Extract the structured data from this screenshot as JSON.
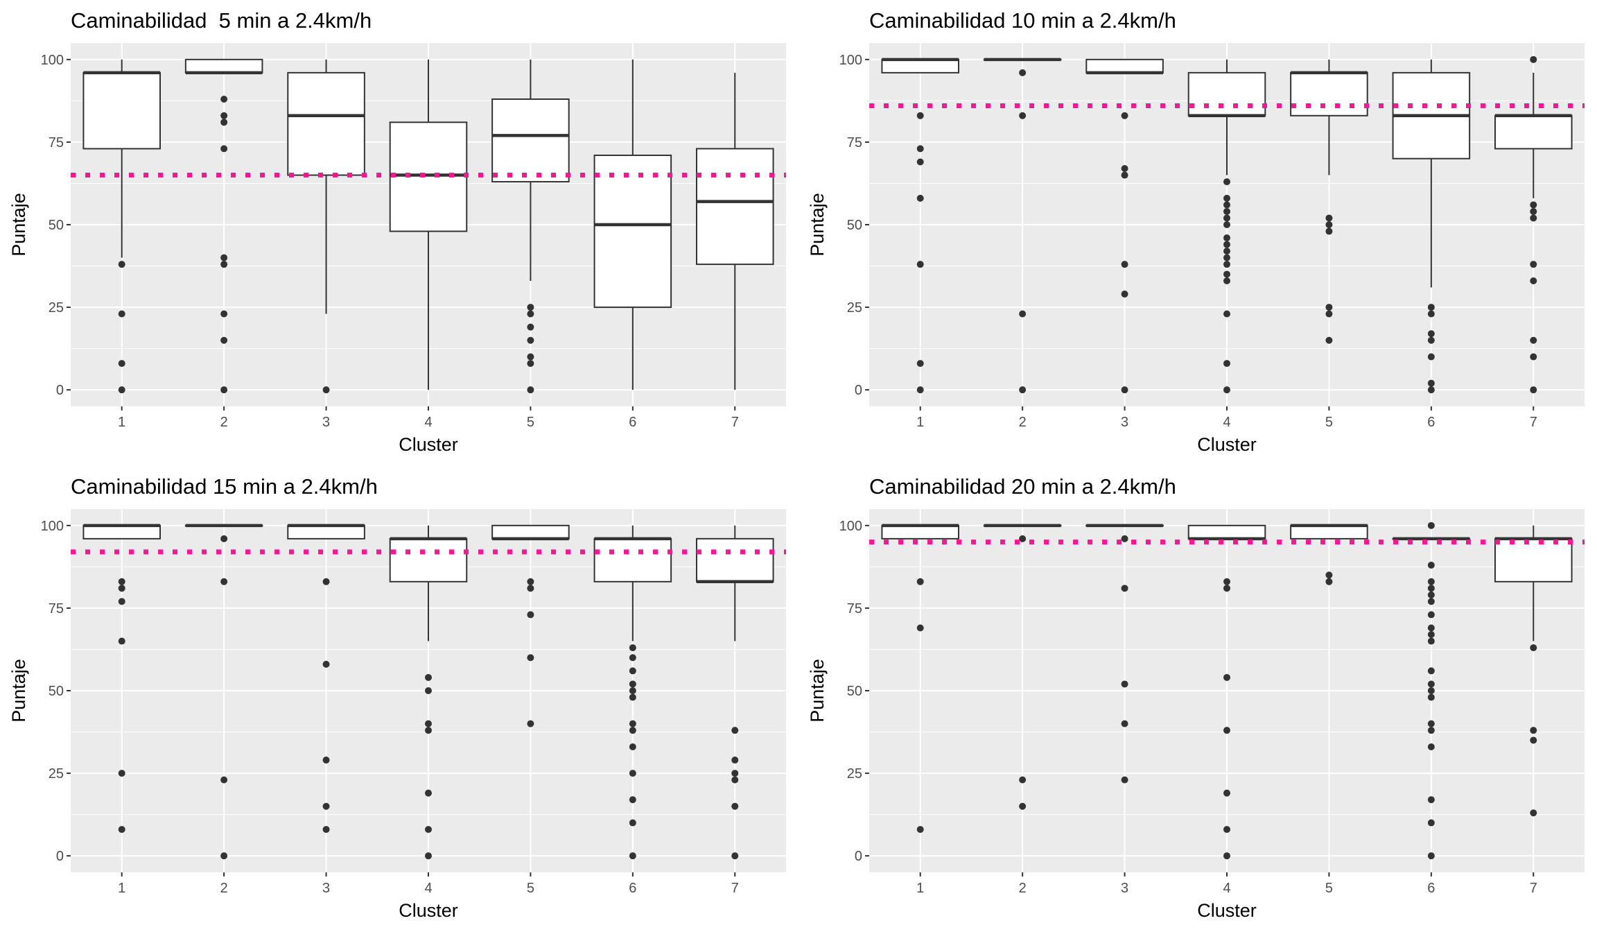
{
  "colors": {
    "panel_bg": "#ebebeb",
    "grid_major": "#ffffff",
    "box_fill": "#ffffff",
    "box_line": "#333333",
    "outlier": "#333333",
    "reference_line": "#ff1493",
    "tick_text": "#4d4d4d",
    "axis_text": "#000000"
  },
  "chart_data": [
    {
      "type": "boxplot",
      "title": "Caminabilidad  5 min a 2.4km/h",
      "xlabel": "Cluster",
      "ylabel": "Puntaje",
      "categories": [
        "1",
        "2",
        "3",
        "4",
        "5",
        "6",
        "7"
      ],
      "yticks": [
        0,
        25,
        50,
        75,
        100
      ],
      "ylim": [
        -5,
        105
      ],
      "grid": true,
      "reference_line": {
        "y": 65,
        "style": "dotted"
      },
      "boxes": [
        {
          "category": "1",
          "whisker_low": 40,
          "q1": 73,
          "median": 96,
          "q3": 96,
          "whisker_high": 100,
          "outliers": [
            38,
            23,
            8,
            0
          ]
        },
        {
          "category": "2",
          "whisker_low": 96,
          "q1": 96,
          "median": 96,
          "q3": 100,
          "whisker_high": 100,
          "outliers": [
            88,
            83,
            81,
            73,
            40,
            38,
            23,
            15,
            0
          ]
        },
        {
          "category": "3",
          "whisker_low": 23,
          "q1": 65,
          "median": 83,
          "q3": 96,
          "whisker_high": 100,
          "outliers": [
            0
          ]
        },
        {
          "category": "4",
          "whisker_low": 0,
          "q1": 48,
          "median": 65,
          "q3": 81,
          "whisker_high": 100,
          "outliers": []
        },
        {
          "category": "5",
          "whisker_low": 33,
          "q1": 63,
          "median": 77,
          "q3": 88,
          "whisker_high": 100,
          "outliers": [
            25,
            23,
            19,
            15,
            10,
            8,
            0
          ]
        },
        {
          "category": "6",
          "whisker_low": 0,
          "q1": 25,
          "median": 50,
          "q3": 71,
          "whisker_high": 100,
          "outliers": []
        },
        {
          "category": "7",
          "whisker_low": 0,
          "q1": 38,
          "median": 57,
          "q3": 73,
          "whisker_high": 96,
          "outliers": []
        }
      ]
    },
    {
      "type": "boxplot",
      "title": "Caminabilidad 10 min a 2.4km/h",
      "xlabel": "Cluster",
      "ylabel": "Puntaje",
      "categories": [
        "1",
        "2",
        "3",
        "4",
        "5",
        "6",
        "7"
      ],
      "yticks": [
        0,
        25,
        50,
        75,
        100
      ],
      "ylim": [
        -5,
        105
      ],
      "grid": true,
      "reference_line": {
        "y": 86,
        "style": "dotted"
      },
      "boxes": [
        {
          "category": "1",
          "whisker_low": 96,
          "q1": 96,
          "median": 100,
          "q3": 100,
          "whisker_high": 100,
          "outliers": [
            83,
            73,
            69,
            58,
            38,
            8,
            0
          ]
        },
        {
          "category": "2",
          "whisker_low": 100,
          "q1": 100,
          "median": 100,
          "q3": 100,
          "whisker_high": 100,
          "outliers": [
            96,
            83,
            23,
            0
          ]
        },
        {
          "category": "3",
          "whisker_low": 96,
          "q1": 96,
          "median": 96,
          "q3": 100,
          "whisker_high": 100,
          "outliers": [
            83,
            67,
            65,
            38,
            29,
            0
          ]
        },
        {
          "category": "4",
          "whisker_low": 65,
          "q1": 83,
          "median": 83,
          "q3": 96,
          "whisker_high": 100,
          "outliers": [
            63,
            58,
            56,
            54,
            52,
            50,
            46,
            44,
            42,
            40,
            38,
            35,
            33,
            23,
            8,
            0
          ]
        },
        {
          "category": "5",
          "whisker_low": 65,
          "q1": 83,
          "median": 96,
          "q3": 96,
          "whisker_high": 100,
          "outliers": [
            52,
            50,
            48,
            25,
            23,
            15
          ]
        },
        {
          "category": "6",
          "whisker_low": 31,
          "q1": 70,
          "median": 83,
          "q3": 96,
          "whisker_high": 100,
          "outliers": [
            25,
            23,
            17,
            15,
            10,
            2,
            0
          ]
        },
        {
          "category": "7",
          "whisker_low": 58,
          "q1": 73,
          "median": 83,
          "q3": 83,
          "whisker_high": 96,
          "outliers": [
            100,
            56,
            54,
            52,
            38,
            33,
            15,
            10,
            0
          ]
        }
      ]
    },
    {
      "type": "boxplot",
      "title": "Caminabilidad 15 min a 2.4km/h",
      "xlabel": "Cluster",
      "ylabel": "Puntaje",
      "categories": [
        "1",
        "2",
        "3",
        "4",
        "5",
        "6",
        "7"
      ],
      "yticks": [
        0,
        25,
        50,
        75,
        100
      ],
      "ylim": [
        -5,
        105
      ],
      "grid": true,
      "reference_line": {
        "y": 92,
        "style": "dotted"
      },
      "boxes": [
        {
          "category": "1",
          "whisker_low": 96,
          "q1": 96,
          "median": 100,
          "q3": 100,
          "whisker_high": 100,
          "outliers": [
            83,
            81,
            77,
            65,
            25,
            8
          ]
        },
        {
          "category": "2",
          "whisker_low": 100,
          "q1": 100,
          "median": 100,
          "q3": 100,
          "whisker_high": 100,
          "outliers": [
            96,
            83,
            23,
            0
          ]
        },
        {
          "category": "3",
          "whisker_low": 96,
          "q1": 96,
          "median": 100,
          "q3": 100,
          "whisker_high": 100,
          "outliers": [
            83,
            58,
            29,
            15,
            8
          ]
        },
        {
          "category": "4",
          "whisker_low": 65,
          "q1": 83,
          "median": 96,
          "q3": 96,
          "whisker_high": 100,
          "outliers": [
            54,
            50,
            40,
            38,
            19,
            8,
            0
          ]
        },
        {
          "category": "5",
          "whisker_low": 96,
          "q1": 96,
          "median": 96,
          "q3": 100,
          "whisker_high": 100,
          "outliers": [
            83,
            81,
            73,
            60,
            40
          ]
        },
        {
          "category": "6",
          "whisker_low": 65,
          "q1": 83,
          "median": 96,
          "q3": 96,
          "whisker_high": 100,
          "outliers": [
            63,
            60,
            56,
            52,
            50,
            48,
            40,
            38,
            33,
            25,
            17,
            10,
            0
          ]
        },
        {
          "category": "7",
          "whisker_low": 65,
          "q1": 83,
          "median": 83,
          "q3": 96,
          "whisker_high": 100,
          "outliers": [
            38,
            29,
            25,
            23,
            15,
            0
          ]
        }
      ]
    },
    {
      "type": "boxplot",
      "title": "Caminabilidad 20 min a 2.4km/h",
      "xlabel": "Cluster",
      "ylabel": "Puntaje",
      "categories": [
        "1",
        "2",
        "3",
        "4",
        "5",
        "6",
        "7"
      ],
      "yticks": [
        0,
        25,
        50,
        75,
        100
      ],
      "ylim": [
        -5,
        105
      ],
      "grid": true,
      "reference_line": {
        "y": 95,
        "style": "dotted"
      },
      "boxes": [
        {
          "category": "1",
          "whisker_low": 96,
          "q1": 96,
          "median": 100,
          "q3": 100,
          "whisker_high": 100,
          "outliers": [
            83,
            69,
            8
          ]
        },
        {
          "category": "2",
          "whisker_low": 100,
          "q1": 100,
          "median": 100,
          "q3": 100,
          "whisker_high": 100,
          "outliers": [
            96,
            23,
            15
          ]
        },
        {
          "category": "3",
          "whisker_low": 100,
          "q1": 100,
          "median": 100,
          "q3": 100,
          "whisker_high": 100,
          "outliers": [
            96,
            81,
            52,
            40,
            23
          ]
        },
        {
          "category": "4",
          "whisker_low": 96,
          "q1": 96,
          "median": 96,
          "q3": 100,
          "whisker_high": 100,
          "outliers": [
            83,
            81,
            54,
            38,
            19,
            8,
            0
          ]
        },
        {
          "category": "5",
          "whisker_low": 96,
          "q1": 96,
          "median": 100,
          "q3": 100,
          "whisker_high": 100,
          "outliers": [
            85,
            83
          ]
        },
        {
          "category": "6",
          "whisker_low": 96,
          "q1": 96,
          "median": 96,
          "q3": 96,
          "whisker_high": 96,
          "outliers": [
            100,
            88,
            83,
            81,
            79,
            77,
            73,
            69,
            67,
            65,
            56,
            52,
            50,
            48,
            40,
            38,
            33,
            17,
            10,
            0
          ]
        },
        {
          "category": "7",
          "whisker_low": 65,
          "q1": 83,
          "median": 96,
          "q3": 96,
          "whisker_high": 100,
          "outliers": [
            63,
            38,
            35,
            13
          ]
        }
      ]
    }
  ]
}
